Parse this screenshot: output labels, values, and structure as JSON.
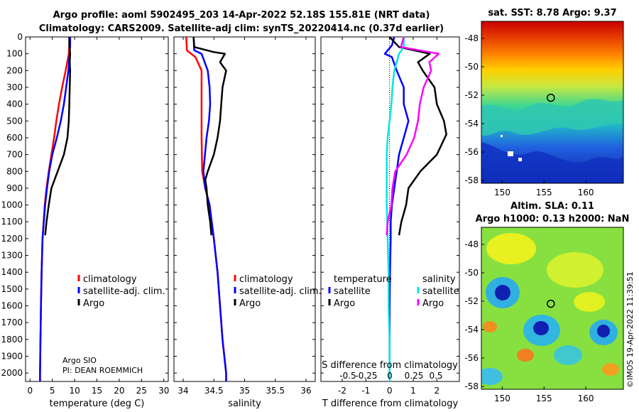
{
  "title": {
    "line1": "Argo profile: aoml 5902495_203 14-Apr-2022 52.18S 155.81E (NRT data)",
    "line2": "Climatology: CARS2009. Satellite-adj clim: synTS_20220414.nc (0.37d earlier)"
  },
  "credit": "©IMOS 19-Apr-2022 11:39:51",
  "colors": {
    "climatology": "#ff0000",
    "satellite_adj": "#0000ff",
    "argo": "#000000",
    "sat_salinity": "#00e5e5",
    "argo_salinity": "#ff00ff"
  },
  "chart_data": [
    {
      "type": "line",
      "name": "temperature",
      "xlabel": "temperature (deg C)",
      "ylabel": "",
      "xlim": [
        -1,
        31
      ],
      "ylim": [
        2050,
        0
      ],
      "xticks": [
        "0",
        "5",
        "10",
        "15",
        "20",
        "25",
        "30"
      ],
      "yticks": [
        "0",
        "100",
        "200",
        "300",
        "400",
        "500",
        "600",
        "700",
        "800",
        "900",
        "1000",
        "1100",
        "1200",
        "1300",
        "1400",
        "1500",
        "1600",
        "1700",
        "1800",
        "1900",
        "2000"
      ],
      "legend": [
        "climatology",
        "satellite-adj. clim.",
        "Argo"
      ],
      "legend_placement": "lower-right",
      "annotation": [
        "Argo SIO",
        "PI: DEAN ROEMMICH"
      ],
      "series": [
        {
          "name": "climatology",
          "color": "#ff0000",
          "depth": [
            0,
            50,
            100,
            200,
            300,
            400,
            500,
            600,
            700,
            800,
            900,
            1000,
            1200,
            1400,
            1600,
            1800,
            2000,
            2050
          ],
          "values": [
            8.9,
            8.8,
            8.7,
            8.0,
            7.2,
            6.5,
            5.9,
            5.4,
            4.8,
            4.2,
            3.7,
            3.3,
            2.8,
            2.6,
            2.45,
            2.35,
            2.25,
            2.25
          ]
        },
        {
          "name": "satellite-adj. clim.",
          "color": "#0000ff",
          "depth": [
            0,
            50,
            100,
            200,
            300,
            400,
            500,
            600,
            700,
            800,
            900,
            1000,
            1200,
            1400,
            1600,
            1800,
            2000,
            2050
          ],
          "values": [
            9.0,
            9.0,
            8.9,
            8.6,
            8.1,
            7.6,
            6.9,
            6.0,
            5.0,
            4.3,
            3.8,
            3.4,
            2.8,
            2.6,
            2.45,
            2.35,
            2.25,
            2.25
          ]
        },
        {
          "name": "Argo",
          "color": "#000000",
          "depth": [
            0,
            50,
            100,
            150,
            200,
            300,
            400,
            500,
            600,
            700,
            800,
            900,
            1000,
            1100,
            1180
          ],
          "values": [
            8.8,
            8.8,
            9.0,
            8.9,
            9.0,
            8.9,
            8.8,
            8.7,
            8.4,
            7.6,
            6.2,
            4.8,
            4.2,
            3.7,
            3.4
          ]
        }
      ]
    },
    {
      "type": "line",
      "name": "salinity",
      "xlabel": "salinity",
      "ylabel": "",
      "xlim": [
        33.85,
        36.15
      ],
      "ylim": [
        2050,
        0
      ],
      "xticks": [
        "34",
        "34.5",
        "35",
        "35.5",
        "36"
      ],
      "legend": [
        "climatology",
        "satellite-adj. clim.",
        "Argo"
      ],
      "legend_placement": "lower-right",
      "series": [
        {
          "name": "climatology",
          "color": "#ff0000",
          "depth": [
            0,
            80,
            120,
            200,
            400,
            600,
            800,
            900,
            1000,
            1200,
            1400,
            1600,
            1800,
            2000,
            2050
          ],
          "values": [
            34.05,
            34.06,
            34.2,
            34.3,
            34.3,
            34.3,
            34.31,
            34.36,
            34.43,
            34.5,
            34.56,
            34.6,
            34.64,
            34.7,
            34.7
          ]
        },
        {
          "name": "satellite-adj. clim.",
          "color": "#0000ff",
          "depth": [
            0,
            80,
            100,
            200,
            300,
            400,
            500,
            600,
            800,
            900,
            1000,
            1200,
            1400,
            1600,
            1800,
            2000,
            2050
          ],
          "values": [
            34.17,
            34.18,
            34.3,
            34.4,
            34.43,
            34.44,
            34.42,
            34.38,
            34.33,
            34.36,
            34.43,
            34.5,
            34.56,
            34.6,
            34.64,
            34.7,
            34.7
          ]
        },
        {
          "name": "Argo",
          "color": "#000000",
          "depth": [
            0,
            60,
            90,
            100,
            150,
            200,
            300,
            400,
            500,
            600,
            700,
            800,
            850,
            900,
            1000,
            1100,
            1180
          ],
          "values": [
            34.17,
            34.18,
            34.5,
            34.68,
            34.6,
            34.7,
            34.64,
            34.62,
            34.6,
            34.56,
            34.5,
            34.4,
            34.36,
            34.38,
            34.4,
            34.44,
            34.46
          ]
        }
      ]
    },
    {
      "type": "line",
      "name": "difference",
      "xlabel": "T difference from climatology",
      "xlabel_top": "S difference from climatology",
      "xlim": [
        -2.9,
        2.95
      ],
      "ylim": [
        2050,
        0
      ],
      "xticks": [
        "-2",
        "-1",
        "0",
        "1",
        "2"
      ],
      "xticks_top": [
        "-0.5",
        "-0.25",
        "0",
        "0.25",
        "0.5"
      ],
      "legend_left_title": "temperature",
      "legend_right_title": "salinity",
      "legend_left": [
        "satellite",
        "Argo"
      ],
      "legend_right": [
        "satellite",
        "Argo"
      ],
      "series": [
        {
          "name": "T satellite",
          "color": "#0000ff",
          "depth": [
            0,
            50,
            100,
            120,
            200,
            300,
            400,
            500,
            600,
            700,
            800,
            900,
            1000,
            1100,
            1200,
            1400,
            1600,
            1800,
            2000,
            2050
          ],
          "values": [
            0.2,
            0.1,
            -0.2,
            0.1,
            0.3,
            0.6,
            0.6,
            0.8,
            0.6,
            0.4,
            0.3,
            0.2,
            0.1,
            0.05,
            0.05,
            0.02,
            0.0,
            0.0,
            0.0,
            0.0
          ]
        },
        {
          "name": "T Argo",
          "color": "#000000",
          "depth": [
            0,
            60,
            100,
            150,
            200,
            300,
            400,
            500,
            580,
            700,
            800,
            900,
            1000,
            1100,
            1180
          ],
          "values": [
            0.0,
            0.4,
            1.7,
            1.2,
            1.4,
            1.9,
            2.0,
            2.3,
            2.4,
            2.0,
            1.3,
            0.8,
            0.7,
            0.5,
            0.4
          ]
        },
        {
          "name": "S satellite",
          "color": "#00e5e5",
          "depth": [
            0,
            60,
            100,
            200,
            300,
            400,
            500,
            600,
            700,
            800,
            900,
            1000,
            1200,
            1400,
            1600,
            1800,
            2000,
            2050
          ],
          "values": [
            0.15,
            0.15,
            0.1,
            0.05,
            0.03,
            0.02,
            0.0,
            -0.02,
            -0.03,
            -0.03,
            -0.03,
            -0.03,
            -0.02,
            -0.01,
            -0.01,
            0.0,
            0.0,
            0.0
          ]
        },
        {
          "name": "S Argo",
          "color": "#ff00ff",
          "depth": [
            0,
            60,
            100,
            150,
            200,
            300,
            400,
            500,
            600,
            700,
            800,
            900,
            1000,
            1100,
            1180
          ],
          "values": [
            0.15,
            0.12,
            0.52,
            0.42,
            0.44,
            0.36,
            0.32,
            0.3,
            0.26,
            0.18,
            0.06,
            0.03,
            0.02,
            -0.02,
            -0.03
          ]
        }
      ]
    },
    {
      "type": "heatmap",
      "name": "sst-map",
      "title": "sat. SST: 8.78 Argo: 9.37",
      "xticks": [
        "150",
        "155",
        "160"
      ],
      "yticks": [
        "-48",
        "-50",
        "-52",
        "-54",
        "-56",
        "-58"
      ],
      "xlim": [
        147.5,
        164.5
      ],
      "ylim": [
        -58.2,
        -46.8
      ],
      "marker": {
        "lon": 155.81,
        "lat": -52.18
      }
    },
    {
      "type": "heatmap",
      "name": "sla-map",
      "title_line1": "Altim. SLA: 0.11",
      "title_line2": "Argo h1000: 0.13 h2000: NaN",
      "xticks": [
        "150",
        "155",
        "160"
      ],
      "yticks": [
        "-48",
        "-50",
        "-52",
        "-54",
        "-56",
        "-58"
      ],
      "xlim": [
        147.5,
        164.5
      ],
      "ylim": [
        -58.2,
        -46.8
      ],
      "marker": {
        "lon": 155.81,
        "lat": -52.18
      }
    }
  ]
}
